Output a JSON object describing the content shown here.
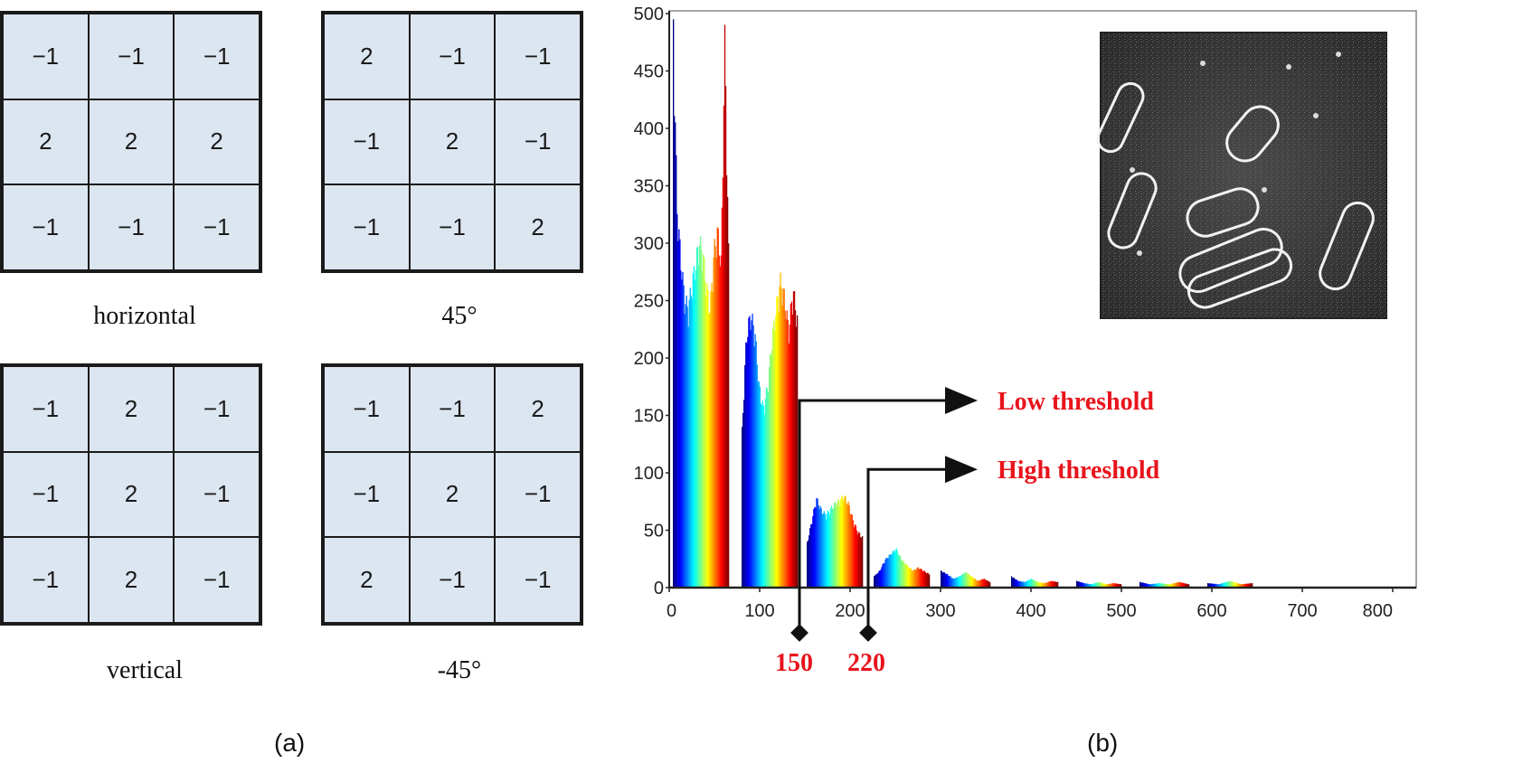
{
  "kernels": [
    {
      "caption": "horizontal",
      "cells": [
        "−1",
        "−1",
        "−1",
        "2",
        "2",
        "2",
        "−1",
        "−1",
        "−1"
      ]
    },
    {
      "caption": "45°",
      "cells": [
        "2",
        "−1",
        "−1",
        "−1",
        "2",
        "−1",
        "−1",
        "−1",
        "2"
      ]
    },
    {
      "caption": "vertical",
      "cells": [
        "−1",
        "2",
        "−1",
        "−1",
        "2",
        "−1",
        "−1",
        "2",
        "−1"
      ]
    },
    {
      "caption": "-45°",
      "cells": [
        "−1",
        "−1",
        "2",
        "−1",
        "2",
        "−1",
        "2",
        "−1",
        "−1"
      ]
    }
  ],
  "panel_labels": {
    "a": "(a)",
    "b": "(b)"
  },
  "chart_data": {
    "type": "bar",
    "xlim": [
      0,
      800
    ],
    "ylim": [
      0,
      500
    ],
    "xticks": [
      0,
      100,
      200,
      300,
      400,
      500,
      600,
      700,
      800
    ],
    "yticks": [
      0,
      50,
      100,
      150,
      200,
      250,
      300,
      350,
      400,
      450,
      500
    ],
    "grid": false,
    "colormap": "jet",
    "bin_groups": [
      {
        "x_start": 4,
        "x_end": 66,
        "values": [
          495,
          340,
          295,
          260,
          250,
          270,
          290,
          310,
          300,
          270,
          250,
          300,
          320,
          290,
          494,
          300
        ]
      },
      {
        "x_start": 80,
        "x_end": 142,
        "values": [
          140,
          225,
          245,
          230,
          180,
          160,
          180,
          220,
          250,
          275,
          260,
          230,
          268,
          240
        ]
      },
      {
        "x_start": 152,
        "x_end": 214,
        "values": [
          40,
          60,
          80,
          70,
          65,
          70,
          75,
          78,
          82,
          75,
          60,
          50,
          45
        ]
      },
      {
        "x_start": 226,
        "x_end": 288,
        "values": [
          10,
          15,
          25,
          30,
          35,
          25,
          20,
          15,
          18,
          15,
          12
        ]
      },
      {
        "x_start": 300,
        "x_end": 355,
        "values": [
          15,
          12,
          8,
          10,
          14,
          10,
          6,
          8,
          5
        ]
      },
      {
        "x_start": 378,
        "x_end": 430,
        "values": [
          10,
          6,
          5,
          8,
          5,
          4,
          6,
          5
        ]
      },
      {
        "x_start": 450,
        "x_end": 500,
        "values": [
          6,
          4,
          3,
          5,
          3,
          4,
          3
        ]
      },
      {
        "x_start": 520,
        "x_end": 575,
        "values": [
          5,
          3,
          4,
          3,
          5,
          3
        ]
      },
      {
        "x_start": 595,
        "x_end": 645,
        "values": [
          4,
          3,
          6,
          3,
          4
        ]
      }
    ],
    "thresholds": [
      {
        "value": 150,
        "label": "150",
        "name": "Low threshold",
        "line_y": 163
      },
      {
        "value": 220,
        "label": "220",
        "name": "High threshold",
        "line_y": 103
      }
    ],
    "inset": "micrograph-inset"
  }
}
